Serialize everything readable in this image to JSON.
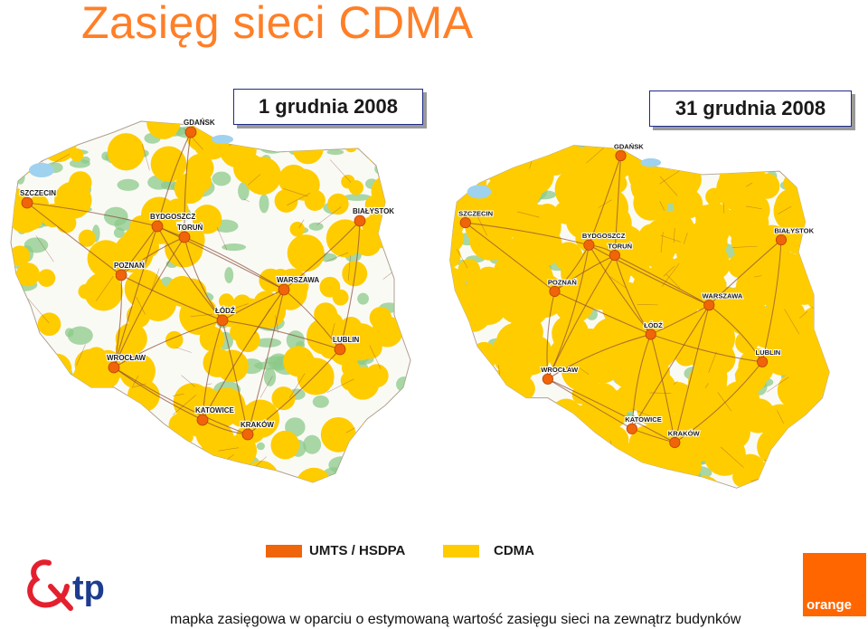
{
  "title": "Zasięg sieci CDMA",
  "maps": [
    {
      "date": "1 grudnia 2008",
      "cities": [
        "GDAŃSK",
        "SZCZECIN",
        "BYDGOSZCZ",
        "TORUŃ",
        "BIAŁYSTOK",
        "POZNAŃ",
        "WARSZAWA",
        "ŁÓDŹ",
        "LUBLIN",
        "WROCŁAW",
        "KATOWICE",
        "KRAKÓW"
      ],
      "coverage": "partial"
    },
    {
      "date": "31 grudnia 2008",
      "cities": [
        "GDAŃSK",
        "SZCZECIN",
        "BYDGOSZCZ",
        "TORUŃ",
        "BIAŁYSTOK",
        "POZNAŃ",
        "WARSZAWA",
        "ŁÓDŹ",
        "LUBLIN",
        "WROCŁAW",
        "KATOWICE",
        "KRAKÓW"
      ],
      "coverage": "extensive"
    }
  ],
  "legend": [
    {
      "label": "UMTS / HSDPA",
      "color": "#f0640a"
    },
    {
      "label": "CDMA",
      "color": "#ffcc00"
    }
  ],
  "colors": {
    "title": "#ff7f27",
    "cdma": "#ffcc00",
    "umts": "#f0640a",
    "forest": "#8cc98a",
    "land": "#fafaf5",
    "roads": "#8a4a3a",
    "water": "#9fd2ee",
    "orange_brand": "#ff6600",
    "tp_red": "#e4202e",
    "tp_blue": "#1d3c8f"
  },
  "logos": {
    "tp": "tp",
    "orange": "orange"
  },
  "footnote": "mapka zasięgowa w oparciu o estymowaną wartość zasięgu sieci na zewnątrz budynków"
}
